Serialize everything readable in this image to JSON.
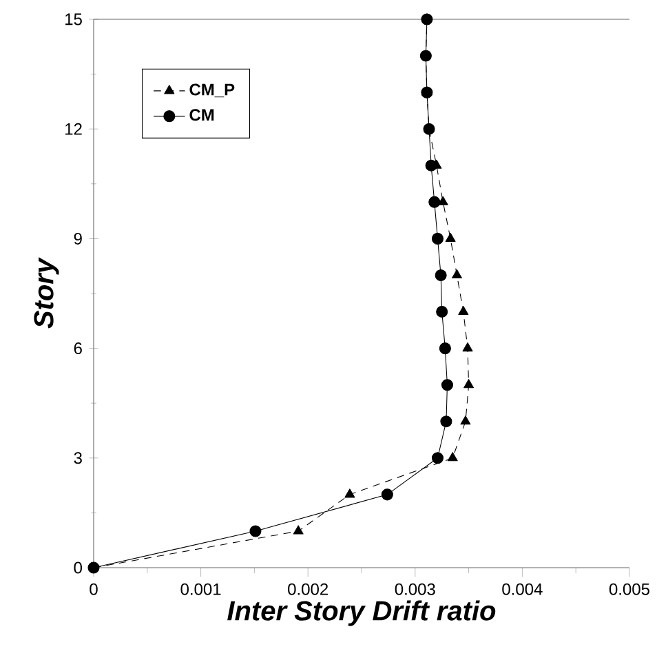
{
  "chart_data": {
    "type": "line",
    "xlabel": "Inter Story Drift ratio",
    "ylabel": "Story",
    "xlim": [
      0,
      0.005
    ],
    "ylim": [
      0,
      15
    ],
    "xticks": [
      0,
      0.001,
      0.002,
      0.003,
      0.004,
      0.005
    ],
    "yticks": [
      0,
      3,
      6,
      9,
      12,
      15
    ],
    "legend": "top left",
    "grid": false,
    "series": [
      {
        "name": "CM_P",
        "color": "#000000",
        "marker": "triangle",
        "line_style": "dashed",
        "x": [
          0,
          0.00191,
          0.00239,
          0.00335,
          0.00347,
          0.0035,
          0.00349,
          0.00345,
          0.00339,
          0.00333,
          0.00326,
          0.0032,
          0.00313,
          0.00311,
          0.0031,
          0.00311
        ],
        "values": [
          0,
          1,
          2,
          3,
          4,
          5,
          6,
          7,
          8,
          9,
          10,
          11,
          12,
          13,
          14,
          15
        ]
      },
      {
        "name": "CM",
        "color": "#000000",
        "marker": "circle",
        "line_style": "solid",
        "x": [
          0,
          0.00151,
          0.00274,
          0.00321,
          0.00329,
          0.0033,
          0.00328,
          0.00325,
          0.00324,
          0.00321,
          0.00318,
          0.00315,
          0.00313,
          0.00311,
          0.0031,
          0.00311
        ],
        "values": [
          0,
          1,
          2,
          3,
          4,
          5,
          6,
          7,
          8,
          9,
          10,
          11,
          12,
          13,
          14,
          15
        ]
      }
    ]
  }
}
